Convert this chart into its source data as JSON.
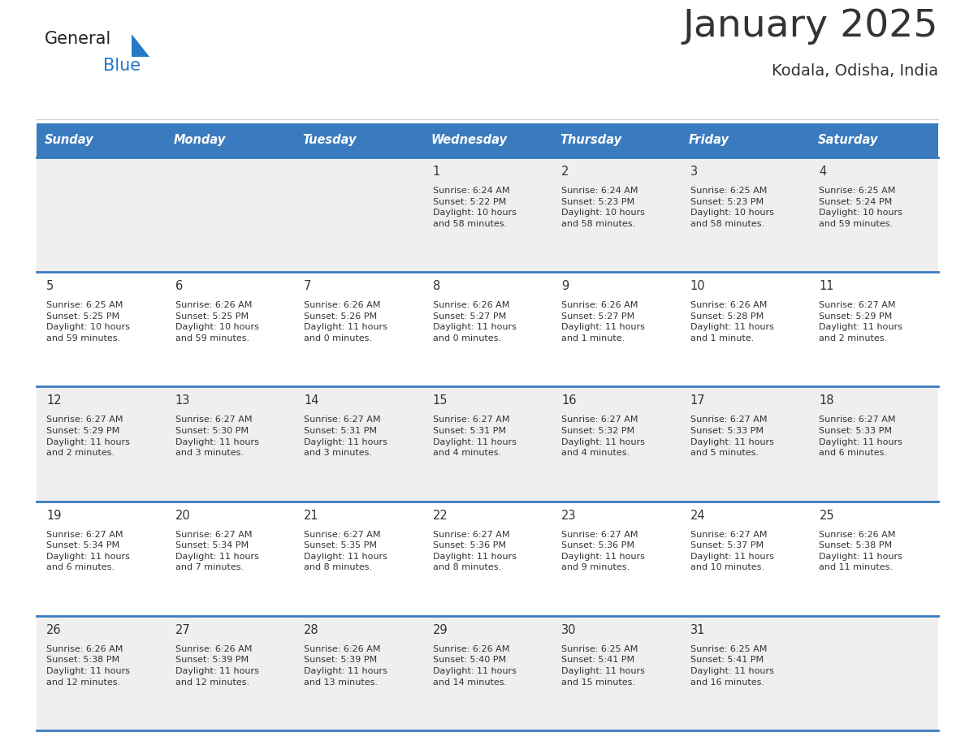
{
  "title": "January 2025",
  "subtitle": "Kodala, Odisha, India",
  "header_bg_color": "#3a7abf",
  "header_text_color": "#ffffff",
  "days_of_week": [
    "Sunday",
    "Monday",
    "Tuesday",
    "Wednesday",
    "Thursday",
    "Friday",
    "Saturday"
  ],
  "row_colors": [
    "#efefef",
    "#ffffff"
  ],
  "divider_color": "#3a7abf",
  "cell_border_color": "#bbbbbb",
  "text_color": "#333333",
  "logo_general_color": "#222222",
  "logo_blue_color": "#2479c4",
  "logo_triangle_color": "#2479c4",
  "calendar": [
    [
      {
        "day": null,
        "info": null
      },
      {
        "day": null,
        "info": null
      },
      {
        "day": null,
        "info": null
      },
      {
        "day": 1,
        "info": "Sunrise: 6:24 AM\nSunset: 5:22 PM\nDaylight: 10 hours\nand 58 minutes."
      },
      {
        "day": 2,
        "info": "Sunrise: 6:24 AM\nSunset: 5:23 PM\nDaylight: 10 hours\nand 58 minutes."
      },
      {
        "day": 3,
        "info": "Sunrise: 6:25 AM\nSunset: 5:23 PM\nDaylight: 10 hours\nand 58 minutes."
      },
      {
        "day": 4,
        "info": "Sunrise: 6:25 AM\nSunset: 5:24 PM\nDaylight: 10 hours\nand 59 minutes."
      }
    ],
    [
      {
        "day": 5,
        "info": "Sunrise: 6:25 AM\nSunset: 5:25 PM\nDaylight: 10 hours\nand 59 minutes."
      },
      {
        "day": 6,
        "info": "Sunrise: 6:26 AM\nSunset: 5:25 PM\nDaylight: 10 hours\nand 59 minutes."
      },
      {
        "day": 7,
        "info": "Sunrise: 6:26 AM\nSunset: 5:26 PM\nDaylight: 11 hours\nand 0 minutes."
      },
      {
        "day": 8,
        "info": "Sunrise: 6:26 AM\nSunset: 5:27 PM\nDaylight: 11 hours\nand 0 minutes."
      },
      {
        "day": 9,
        "info": "Sunrise: 6:26 AM\nSunset: 5:27 PM\nDaylight: 11 hours\nand 1 minute."
      },
      {
        "day": 10,
        "info": "Sunrise: 6:26 AM\nSunset: 5:28 PM\nDaylight: 11 hours\nand 1 minute."
      },
      {
        "day": 11,
        "info": "Sunrise: 6:27 AM\nSunset: 5:29 PM\nDaylight: 11 hours\nand 2 minutes."
      }
    ],
    [
      {
        "day": 12,
        "info": "Sunrise: 6:27 AM\nSunset: 5:29 PM\nDaylight: 11 hours\nand 2 minutes."
      },
      {
        "day": 13,
        "info": "Sunrise: 6:27 AM\nSunset: 5:30 PM\nDaylight: 11 hours\nand 3 minutes."
      },
      {
        "day": 14,
        "info": "Sunrise: 6:27 AM\nSunset: 5:31 PM\nDaylight: 11 hours\nand 3 minutes."
      },
      {
        "day": 15,
        "info": "Sunrise: 6:27 AM\nSunset: 5:31 PM\nDaylight: 11 hours\nand 4 minutes."
      },
      {
        "day": 16,
        "info": "Sunrise: 6:27 AM\nSunset: 5:32 PM\nDaylight: 11 hours\nand 4 minutes."
      },
      {
        "day": 17,
        "info": "Sunrise: 6:27 AM\nSunset: 5:33 PM\nDaylight: 11 hours\nand 5 minutes."
      },
      {
        "day": 18,
        "info": "Sunrise: 6:27 AM\nSunset: 5:33 PM\nDaylight: 11 hours\nand 6 minutes."
      }
    ],
    [
      {
        "day": 19,
        "info": "Sunrise: 6:27 AM\nSunset: 5:34 PM\nDaylight: 11 hours\nand 6 minutes."
      },
      {
        "day": 20,
        "info": "Sunrise: 6:27 AM\nSunset: 5:34 PM\nDaylight: 11 hours\nand 7 minutes."
      },
      {
        "day": 21,
        "info": "Sunrise: 6:27 AM\nSunset: 5:35 PM\nDaylight: 11 hours\nand 8 minutes."
      },
      {
        "day": 22,
        "info": "Sunrise: 6:27 AM\nSunset: 5:36 PM\nDaylight: 11 hours\nand 8 minutes."
      },
      {
        "day": 23,
        "info": "Sunrise: 6:27 AM\nSunset: 5:36 PM\nDaylight: 11 hours\nand 9 minutes."
      },
      {
        "day": 24,
        "info": "Sunrise: 6:27 AM\nSunset: 5:37 PM\nDaylight: 11 hours\nand 10 minutes."
      },
      {
        "day": 25,
        "info": "Sunrise: 6:26 AM\nSunset: 5:38 PM\nDaylight: 11 hours\nand 11 minutes."
      }
    ],
    [
      {
        "day": 26,
        "info": "Sunrise: 6:26 AM\nSunset: 5:38 PM\nDaylight: 11 hours\nand 12 minutes."
      },
      {
        "day": 27,
        "info": "Sunrise: 6:26 AM\nSunset: 5:39 PM\nDaylight: 11 hours\nand 12 minutes."
      },
      {
        "day": 28,
        "info": "Sunrise: 6:26 AM\nSunset: 5:39 PM\nDaylight: 11 hours\nand 13 minutes."
      },
      {
        "day": 29,
        "info": "Sunrise: 6:26 AM\nSunset: 5:40 PM\nDaylight: 11 hours\nand 14 minutes."
      },
      {
        "day": 30,
        "info": "Sunrise: 6:25 AM\nSunset: 5:41 PM\nDaylight: 11 hours\nand 15 minutes."
      },
      {
        "day": 31,
        "info": "Sunrise: 6:25 AM\nSunset: 5:41 PM\nDaylight: 11 hours\nand 16 minutes."
      },
      {
        "day": null,
        "info": null
      }
    ]
  ]
}
